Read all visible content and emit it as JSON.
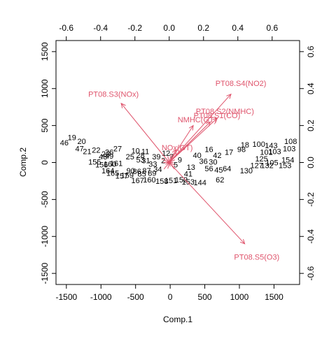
{
  "chart_data": {
    "type": "scatter",
    "subtype": "biplot",
    "title": "",
    "xlabel": "Comp.1",
    "ylabel": "Comp.2",
    "xlim": [
      -1650,
      1870
    ],
    "ylim": [
      -1650,
      1650
    ],
    "x_ticks": [
      -1500,
      -1000,
      -500,
      0,
      500,
      1000,
      1500
    ],
    "y_ticks": [
      -1500,
      -1000,
      -500,
      0,
      500,
      1000,
      1500
    ],
    "top_ticks": [
      -0.6,
      -0.4,
      -0.2,
      0.0,
      0.2,
      0.4,
      0.6
    ],
    "right_ticks": [
      -0.6,
      -0.4,
      -0.2,
      0.0,
      0.2,
      0.4,
      0.6
    ],
    "top_lim": [
      -0.66,
      0.76
    ],
    "right_lim": [
      -0.66,
      0.66
    ],
    "grid": false,
    "point_color": "#000000",
    "loading_color": "#df536b",
    "observations": [
      {
        "label": "46",
        "x": -1530,
        "y": 270
      },
      {
        "label": "19",
        "x": -1420,
        "y": 340
      },
      {
        "label": "20",
        "x": -1280,
        "y": 290
      },
      {
        "label": "47",
        "x": -1310,
        "y": 190
      },
      {
        "label": "21",
        "x": -1200,
        "y": 150
      },
      {
        "label": "22",
        "x": -1070,
        "y": 170
      },
      {
        "label": "27",
        "x": -760,
        "y": 190
      },
      {
        "label": "23",
        "x": -930,
        "y": 120
      },
      {
        "label": "26",
        "x": -880,
        "y": 140
      },
      {
        "label": "48",
        "x": -970,
        "y": 80
      },
      {
        "label": "49",
        "x": -880,
        "y": 90
      },
      {
        "label": "155",
        "x": -1090,
        "y": 10
      },
      {
        "label": "156",
        "x": -990,
        "y": -30
      },
      {
        "label": "160",
        "x": -870,
        "y": -20
      },
      {
        "label": "161",
        "x": -780,
        "y": -10
      },
      {
        "label": "164",
        "x": -900,
        "y": -110
      },
      {
        "label": "165",
        "x": -830,
        "y": -140
      },
      {
        "label": "157",
        "x": -700,
        "y": -180
      },
      {
        "label": "159",
        "x": -620,
        "y": -170
      },
      {
        "label": "167",
        "x": -470,
        "y": -240
      },
      {
        "label": "160",
        "x": -300,
        "y": -230
      },
      {
        "label": "158",
        "x": -120,
        "y": -250
      },
      {
        "label": "10",
        "x": -500,
        "y": 160
      },
      {
        "label": "25",
        "x": -580,
        "y": 80
      },
      {
        "label": "28",
        "x": -430,
        "y": 100
      },
      {
        "label": "11",
        "x": -360,
        "y": 150
      },
      {
        "label": "12",
        "x": -60,
        "y": 130
      },
      {
        "label": "7",
        "x": 20,
        "y": 80
      },
      {
        "label": "31",
        "x": -350,
        "y": 30
      },
      {
        "label": "33",
        "x": -250,
        "y": -20
      },
      {
        "label": "34",
        "x": -180,
        "y": -90
      },
      {
        "label": "90",
        "x": -570,
        "y": -110
      },
      {
        "label": "86",
        "x": -480,
        "y": -120
      },
      {
        "label": "85",
        "x": -410,
        "y": -150
      },
      {
        "label": "87",
        "x": -340,
        "y": -110
      },
      {
        "label": "89",
        "x": -260,
        "y": -140
      },
      {
        "label": "151",
        "x": 10,
        "y": -240
      },
      {
        "label": "152",
        "x": 160,
        "y": -230
      },
      {
        "label": "153",
        "x": 260,
        "y": -260
      },
      {
        "label": "144",
        "x": 430,
        "y": -270
      },
      {
        "label": "62",
        "x": 720,
        "y": -230
      },
      {
        "label": "40",
        "x": 390,
        "y": 100
      },
      {
        "label": "16",
        "x": 560,
        "y": 180
      },
      {
        "label": "42",
        "x": 680,
        "y": 100
      },
      {
        "label": "17",
        "x": 850,
        "y": 140
      },
      {
        "label": "36",
        "x": 480,
        "y": 20
      },
      {
        "label": "30",
        "x": 620,
        "y": 10
      },
      {
        "label": "64",
        "x": 820,
        "y": -80
      },
      {
        "label": "56",
        "x": 560,
        "y": -80
      },
      {
        "label": "45",
        "x": 700,
        "y": -100
      },
      {
        "label": "125",
        "x": 1320,
        "y": 50
      },
      {
        "label": "105",
        "x": 1470,
        "y": 0
      },
      {
        "label": "132",
        "x": 1400,
        "y": -40
      },
      {
        "label": "130",
        "x": 1100,
        "y": -110
      },
      {
        "label": "127",
        "x": 1250,
        "y": -40
      },
      {
        "label": "18",
        "x": 1080,
        "y": 240
      },
      {
        "label": "98",
        "x": 1030,
        "y": 180
      },
      {
        "label": "100",
        "x": 1280,
        "y": 250
      },
      {
        "label": "143",
        "x": 1460,
        "y": 230
      },
      {
        "label": "101",
        "x": 1390,
        "y": 140
      },
      {
        "label": "103",
        "x": 1510,
        "y": 150
      },
      {
        "label": "108",
        "x": 1740,
        "y": 290
      },
      {
        "label": "103",
        "x": 1720,
        "y": 190
      },
      {
        "label": "154",
        "x": 1700,
        "y": 40
      },
      {
        "label": "153",
        "x": 1660,
        "y": -40
      },
      {
        "label": "2",
        "x": -100,
        "y": 30
      },
      {
        "label": "5",
        "x": 80,
        "y": -30
      },
      {
        "label": "9",
        "x": 140,
        "y": 40
      },
      {
        "label": "13",
        "x": 300,
        "y": -60
      },
      {
        "label": "41",
        "x": 260,
        "y": -150
      },
      {
        "label": "53",
        "x": -430,
        "y": 40
      },
      {
        "label": "39",
        "x": -200,
        "y": 80
      }
    ],
    "loadings": [
      {
        "name": "PT08.S3(NOx)",
        "x": -0.28,
        "y": 0.32
      },
      {
        "name": "PT08.S4(NO2)",
        "x": 0.36,
        "y": 0.37
      },
      {
        "name": "PT08.S2(NMHC)",
        "x": 0.28,
        "y": 0.24
      },
      {
        "name": "PT08.S1(CO)",
        "x": 0.24,
        "y": 0.22
      },
      {
        "name": "NMHC(GT)",
        "x": 0.14,
        "y": 0.2
      },
      {
        "name": "NOx(GT)",
        "x": 0.04,
        "y": 0.07
      },
      {
        "name": "PT08.S5(O3)",
        "x": 0.44,
        "y": -0.44
      }
    ]
  }
}
